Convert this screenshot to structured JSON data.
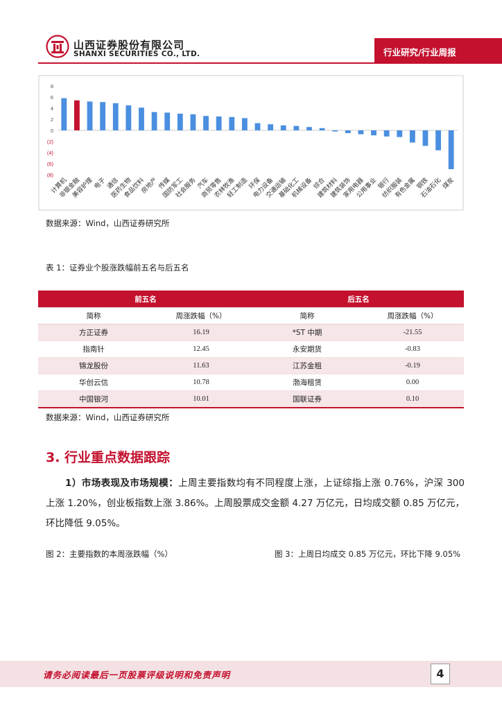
{
  "header": {
    "company_cn": "山西证券股份有限公司",
    "company_en": "SHANXI SECURITIES CO., LTD.",
    "tag": "行业研究/行业周报",
    "brand_color": "#c3112e"
  },
  "chart_data": {
    "type": "bar",
    "yticks": [
      "8",
      "6",
      "4",
      "2",
      "0",
      "(2)",
      "(4)",
      "(6)",
      "(8)"
    ],
    "ylim": [
      -8,
      8
    ],
    "highlight_index": 1,
    "bar_color": "#4a8fe0",
    "highlight_color": "#c3112e",
    "categories": [
      "计算机",
      "非银金融",
      "美容护理",
      "电子",
      "通信",
      "医药生物",
      "食品饮料",
      "房地产",
      "传媒",
      "国防军工",
      "社会服务",
      "汽车",
      "商贸零售",
      "农林牧渔",
      "轻工制造",
      "环保",
      "电力设备",
      "交通运输",
      "基础化工",
      "机械设备",
      "综合",
      "建筑材料",
      "建筑装饰",
      "家用电器",
      "公用事业",
      "银行",
      "纺织服装",
      "有色金属",
      "钢铁",
      "石油石化",
      "煤炭"
    ],
    "values": [
      5.8,
      5.4,
      5.2,
      5.1,
      4.9,
      4.5,
      4.1,
      3.3,
      3.2,
      3.0,
      2.9,
      2.6,
      2.5,
      2.4,
      2.2,
      1.3,
      1.1,
      0.9,
      0.8,
      0.6,
      0.4,
      -0.2,
      -0.5,
      -0.7,
      -0.9,
      -1.1,
      -1.2,
      -2.2,
      -2.8,
      -3.6,
      -7.0
    ]
  },
  "source1": "数据来源：Wind，山西证券研究所",
  "table": {
    "caption": "表 1：证券业个股涨跌幅前五名与后五名",
    "group_top": "前五名",
    "group_bottom": "后五名",
    "col_name": "简称",
    "col_change": "周涨跌幅（%）",
    "rows": [
      {
        "top_name": "方正证券",
        "top_val": "16.19",
        "bot_name": "*ST 中期",
        "bot_val": "-21.55"
      },
      {
        "top_name": "指南针",
        "top_val": "12.45",
        "bot_name": "永安期货",
        "bot_val": "-0.83"
      },
      {
        "top_name": "锦龙股份",
        "top_val": "11.63",
        "bot_name": "江苏金租",
        "bot_val": "-0.19"
      },
      {
        "top_name": "华创云信",
        "top_val": "10.78",
        "bot_name": "渤海租赁",
        "bot_val": "0.00"
      },
      {
        "top_name": "中国银河",
        "top_val": "10.01",
        "bot_name": "国联证券",
        "bot_val": "0.10"
      }
    ]
  },
  "source2": "数据来源：Wind，山西证券研究所",
  "section": {
    "title": "3. 行业重点数据跟踪",
    "lead": "1）市场表现及市场规模：",
    "body": "上周主要指数均有不同程度上涨，上证综指上涨 0.76%，沪深 300 上涨 1.20%，创业板指数上涨 3.86%。上周股票成交金额 4.27 万亿元，日均成交额 0.85 万亿元，环比降低 9.05%。"
  },
  "fig2_caption": "图 2：主要指数的本周涨跌幅（%）",
  "fig3_caption": "图 3：上周日均成交 0.85 万亿元，环比下降 9.05%",
  "footer": {
    "disclaimer": "请务必阅读最后一页股票评级说明和免责声明",
    "page": "4"
  }
}
